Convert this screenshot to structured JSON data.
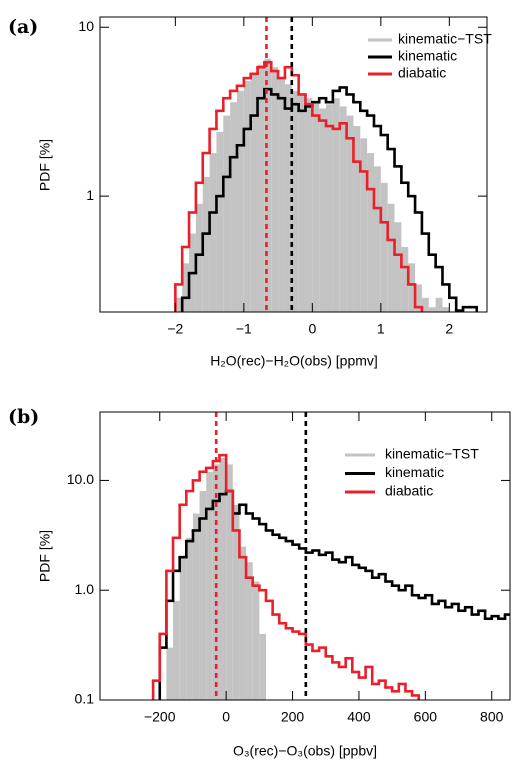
{
  "chart_data": [
    {
      "type": "histogram",
      "title": "(a)",
      "x_label": "H₂O(rec)−H₂O(obs) [ppmv]",
      "y_label": "PDF [%]",
      "log_y": true,
      "legend": "upper right",
      "xlim": [
        -3.1,
        2.55
      ],
      "ylim": [
        0.206,
        11.5
      ],
      "xticks": [
        {
          "value": -2,
          "label": "−2"
        },
        {
          "value": -1,
          "label": "−1"
        },
        0,
        1,
        2
      ],
      "yticks": [
        1,
        10
      ],
      "bins": [
        -2.1,
        -2.0,
        -1.9,
        -1.8,
        -1.7,
        -1.6,
        -1.5,
        -1.4,
        -1.3,
        -1.2,
        -1.1,
        -1.0,
        -0.9,
        -0.8,
        -0.7,
        -0.6,
        -0.5,
        -0.4,
        -0.3,
        -0.2,
        -0.1,
        0,
        0.1,
        0.2,
        0.3,
        0.4,
        0.5,
        0.6,
        0.7,
        0.8,
        0.9,
        1.0,
        1.1,
        1.2,
        1.3,
        1.4,
        1.5,
        1.6,
        1.7,
        1.8,
        1.9,
        2.0,
        2.1,
        2.2,
        2.3,
        2.4,
        2.5
      ],
      "series": [
        {
          "name": "kinematic−TST",
          "color": "#c3c3c3",
          "style": "filled",
          "values": [
            null,
            0.25,
            0.4,
            0.6,
            0.9,
            1.3,
            1.8,
            2.4,
            3.0,
            3.6,
            4.2,
            4.8,
            5.3,
            6.0,
            6.5,
            5.8,
            5.0,
            4.6,
            4.2,
            4.0,
            3.8,
            3.6,
            3.3,
            3.5,
            3.8,
            3.4,
            3.0,
            2.6,
            2.2,
            1.8,
            1.5,
            1.2,
            0.9,
            0.7,
            0.5,
            0.4,
            0.3,
            0.25,
            0.22,
            0.25,
            0.22,
            null,
            null,
            null,
            null,
            null
          ]
        },
        {
          "name": "kinematic",
          "color": "#000000",
          "style": "step",
          "values": [
            null,
            null,
            0.25,
            0.35,
            0.45,
            0.6,
            0.8,
            1.0,
            1.3,
            1.7,
            2.0,
            2.5,
            3.0,
            3.8,
            4.3,
            4.0,
            3.8,
            3.3,
            3.5,
            3.2,
            3.4,
            3.6,
            3.8,
            3.6,
            4.2,
            4.4,
            4.0,
            3.6,
            3.2,
            3.0,
            2.6,
            2.3,
            1.9,
            1.5,
            1.2,
            1.0,
            0.8,
            0.6,
            0.45,
            0.38,
            0.3,
            0.25,
            0.21,
            0.22,
            0.22,
            null
          ]
        },
        {
          "name": "diabatic",
          "color": "#e8202a",
          "style": "step",
          "values": [
            null,
            0.3,
            0.5,
            0.8,
            1.2,
            1.8,
            2.5,
            3.2,
            3.8,
            4.2,
            4.5,
            5.0,
            5.3,
            5.8,
            6.2,
            5.5,
            5.0,
            5.8,
            5.2,
            4.0,
            3.5,
            3.0,
            2.8,
            2.6,
            2.5,
            2.7,
            2.2,
            1.6,
            1.4,
            1.1,
            0.85,
            0.7,
            0.55,
            0.45,
            0.38,
            0.3,
            0.22,
            null,
            null,
            null,
            null,
            null,
            null,
            null,
            null,
            null
          ]
        }
      ],
      "reference_lines": [
        {
          "x": -0.67,
          "color": "#e8202a"
        },
        {
          "x": -0.3,
          "color": "#000000"
        }
      ]
    },
    {
      "type": "histogram",
      "title": "(b)",
      "x_label": "O₃(rec)−O₃(obs) [ppbv]",
      "y_label": "PDF [%]",
      "log_y": true,
      "legend": "upper right",
      "xlim": [
        -380,
        855
      ],
      "ylim": [
        0.1,
        42
      ],
      "xticks": [
        {
          "value": -200,
          "label": "−200"
        },
        0,
        200,
        400,
        600,
        800
      ],
      "yticks": [
        0.1,
        {
          "value": 1,
          "label": "1.0"
        },
        {
          "value": 10,
          "label": "10.0"
        }
      ],
      "bins": [
        -220,
        -200,
        -180,
        -160,
        -140,
        -120,
        -100,
        -80,
        -60,
        -40,
        -20,
        0,
        20,
        40,
        60,
        80,
        100,
        120,
        140,
        160,
        180,
        200,
        220,
        240,
        260,
        280,
        300,
        320,
        340,
        360,
        380,
        400,
        420,
        440,
        460,
        480,
        500,
        520,
        540,
        560,
        580,
        600,
        620,
        640,
        660,
        680,
        700,
        720,
        740,
        760,
        780,
        800,
        820,
        840,
        860
      ],
      "series": [
        {
          "name": "kinematic−TST",
          "color": "#c3c3c3",
          "style": "filled",
          "values": [
            null,
            null,
            0.3,
            0.8,
            2.0,
            3.0,
            5.0,
            8.0,
            12.0,
            14.0,
            16.0,
            14.0,
            6.0,
            2.5,
            1.8,
            1.2,
            0.4,
            null,
            null,
            null,
            null,
            null,
            null,
            null,
            null,
            null,
            null,
            null,
            null,
            null,
            null,
            null,
            null,
            null,
            null,
            null,
            null,
            null,
            null,
            null,
            null,
            null,
            null,
            null,
            null,
            null,
            null,
            null,
            null,
            null,
            null,
            null,
            null,
            null
          ]
        },
        {
          "name": "kinematic",
          "color": "#000000",
          "style": "step",
          "values": [
            null,
            0.3,
            0.8,
            1.5,
            2.0,
            2.8,
            3.5,
            4.5,
            5.5,
            6.5,
            7.5,
            8.0,
            5.0,
            6.0,
            5.0,
            4.5,
            4.0,
            3.5,
            3.2,
            3.0,
            2.8,
            2.6,
            2.4,
            2.2,
            2.3,
            2.1,
            2.2,
            1.9,
            1.8,
            2.0,
            1.7,
            1.6,
            1.5,
            1.3,
            1.4,
            1.2,
            1.1,
            1.0,
            1.1,
            0.9,
            0.85,
            0.9,
            0.75,
            0.8,
            0.7,
            0.75,
            0.65,
            0.7,
            0.6,
            0.65,
            0.55,
            0.58,
            0.55,
            0.6
          ]
        },
        {
          "name": "diabatic",
          "color": "#e8202a",
          "style": "step",
          "values": [
            0.15,
            0.4,
            1.5,
            3.0,
            6.0,
            8.0,
            10.0,
            12.0,
            13.0,
            15.0,
            17.0,
            8.0,
            3.5,
            2.0,
            1.3,
            1.1,
            1.0,
            0.8,
            0.6,
            0.5,
            0.45,
            0.42,
            0.4,
            0.32,
            0.28,
            0.3,
            0.25,
            0.22,
            0.2,
            0.24,
            0.18,
            0.16,
            0.2,
            0.14,
            0.15,
            0.13,
            0.12,
            0.14,
            0.12,
            0.11,
            null,
            null,
            null,
            null,
            null,
            null,
            null,
            null,
            null,
            null,
            null,
            null,
            null,
            null
          ]
        }
      ],
      "reference_lines": [
        {
          "x": -30,
          "color": "#e8202a"
        },
        {
          "x": 240,
          "color": "#000000"
        }
      ]
    }
  ]
}
